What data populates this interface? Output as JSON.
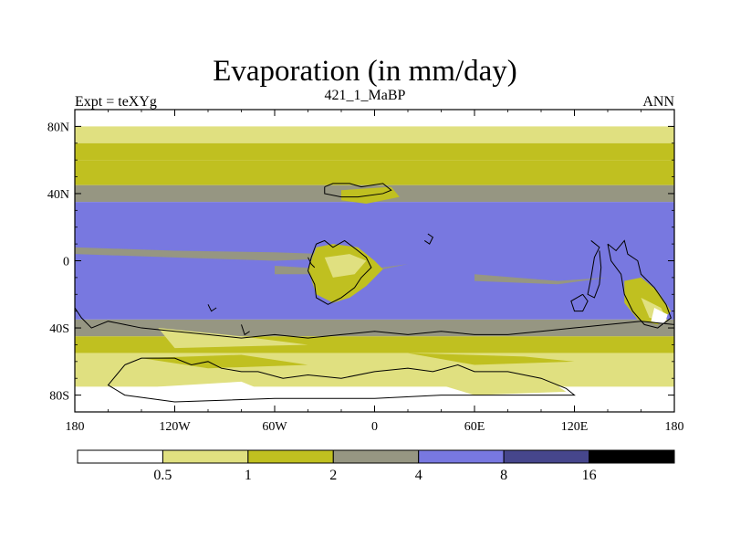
{
  "chart_data": {
    "type": "heatmap",
    "title": "Evaporation (in mm/day)",
    "left_string": "Expt = teXYg",
    "center_string": "421_1_MaBP",
    "right_string": "ANN",
    "x_ticks": [
      "180",
      "120W",
      "60W",
      "0",
      "60E",
      "120E",
      "180"
    ],
    "x_tick_values": [
      -180,
      -120,
      -60,
      0,
      60,
      120,
      180
    ],
    "y_ticks": [
      "80N",
      "40N",
      "0",
      "40S",
      "80S"
    ],
    "y_tick_values": [
      80,
      40,
      0,
      -40,
      -80
    ],
    "xlim": [
      -180,
      180
    ],
    "ylim": [
      -90,
      90
    ],
    "colorbar": {
      "levels": [
        "0.5",
        "1",
        "2",
        "4",
        "8",
        "16"
      ],
      "colors": [
        "#ffffff",
        "#e0e080",
        "#c0c020",
        "#969682",
        "#7878e0",
        "#46468c",
        "#000000"
      ]
    },
    "zonal_bands": [
      {
        "lat_from": 90,
        "lat_to": 80,
        "value_bin": 0
      },
      {
        "lat_from": 80,
        "lat_to": 70,
        "value_bin": 1
      },
      {
        "lat_from": 70,
        "lat_to": 60,
        "value_bin": 2
      },
      {
        "lat_from": 60,
        "lat_to": 45,
        "value_bin": 2
      },
      {
        "lat_from": 45,
        "lat_to": 35,
        "value_bin": 3
      },
      {
        "lat_from": 35,
        "lat_to": -35,
        "value_bin": 4
      },
      {
        "lat_from": -35,
        "lat_to": -45,
        "value_bin": 3
      },
      {
        "lat_from": -45,
        "lat_to": -55,
        "value_bin": 2
      },
      {
        "lat_from": -55,
        "lat_to": -75,
        "value_bin": 1
      },
      {
        "lat_from": -75,
        "lat_to": -90,
        "value_bin": 0
      }
    ]
  }
}
